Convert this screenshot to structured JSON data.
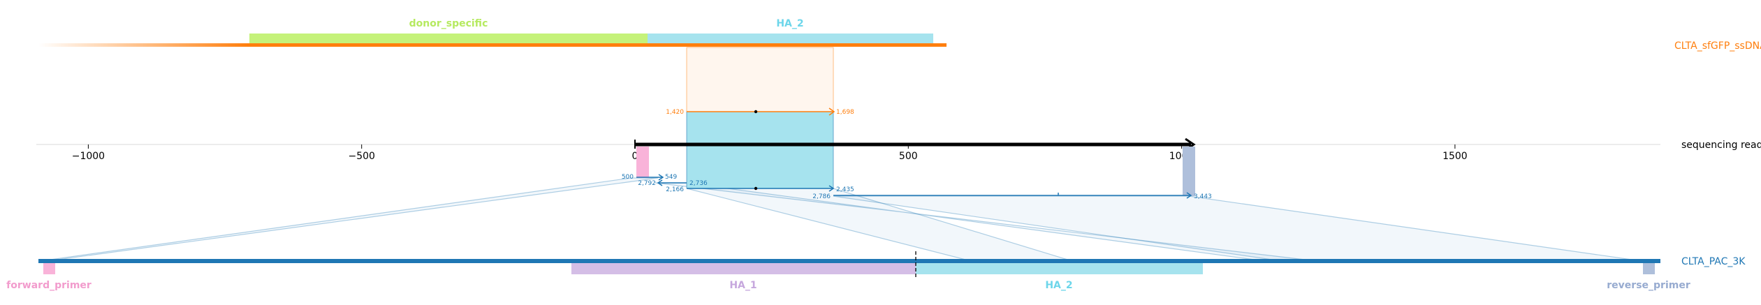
{
  "colors": {
    "donor": "#ff7f0e",
    "target": "#1f77b4",
    "read": "#000000",
    "donor_specific": "#c5f27a",
    "HA_1": "#d4bee6",
    "HA_2": "#a6e3ee",
    "forward_primer": "#f9b3d9",
    "reverse_primer": "#aebfdb"
  },
  "tracks": {
    "donor": "CLTA_sfGFP_ssDNA",
    "read": "sequencing read",
    "target": "CLTA_PAC_3K"
  },
  "axis": {
    "ticks": [
      {
        "value": -1000,
        "label": "−1000"
      },
      {
        "value": -500,
        "label": "−500"
      },
      {
        "value": 0,
        "label": "0"
      },
      {
        "value": 500,
        "label": "500"
      },
      {
        "value": 1000,
        "label": "1000"
      },
      {
        "value": 1500,
        "label": "1500"
      }
    ]
  },
  "donor_features": [
    {
      "name": "donor_specific",
      "label": "donor_specific",
      "color": "#c5f27a"
    },
    {
      "name": "HA_2",
      "label": "HA_2",
      "color": "#a6e3ee"
    }
  ],
  "target_features": [
    {
      "name": "forward_primer",
      "label": "forward_primer",
      "color": "#f9b3d9"
    },
    {
      "name": "HA_1",
      "label": "HA_1",
      "color": "#d4bee6"
    },
    {
      "name": "HA_2",
      "label": "HA_2",
      "color": "#a6e3ee"
    },
    {
      "name": "reverse_primer",
      "label": "reverse_primer",
      "color": "#aebfdb"
    }
  ],
  "alignments": {
    "donor": [
      {
        "start_label": "1,420",
        "end_label": "1,698"
      }
    ],
    "target": [
      {
        "start_label": "500",
        "end_label": "549"
      },
      {
        "start_label": "2,792",
        "end_label": "2,736"
      },
      {
        "start_label": "2,166",
        "end_label": "2,435"
      },
      {
        "start_label": "2,786",
        "end_label": "3,443"
      }
    ]
  }
}
